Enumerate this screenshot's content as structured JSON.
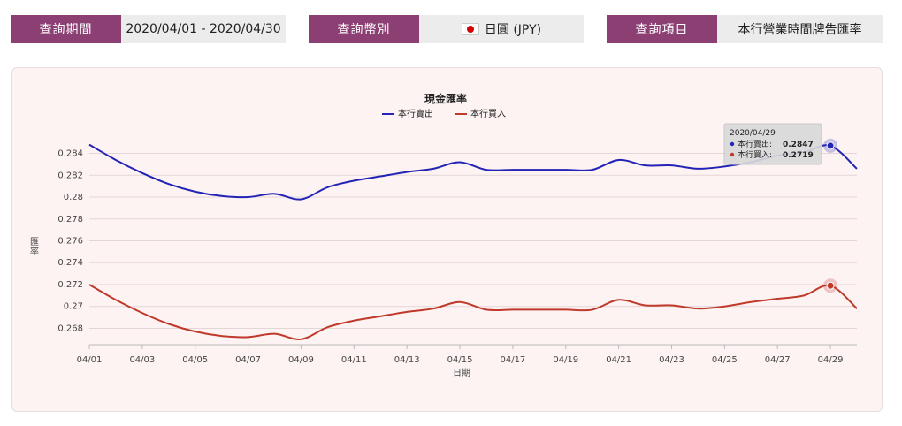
{
  "filters": [
    {
      "label": "查詢期間",
      "value": "2020/04/01 - 2020/04/30"
    },
    {
      "label": "查詢幣別",
      "value": "日圓 (JPY)"
    },
    {
      "label": "查詢項目",
      "value": "本行營業時間牌告匯率"
    }
  ],
  "colors": {
    "accent": "#8b3f73",
    "sell": "#2323b5",
    "buy": "#c0392b"
  },
  "chart_data": {
    "type": "line",
    "title": "現金匯率",
    "xlabel": "日期",
    "ylabel": "匯率",
    "x": [
      "04/01",
      "04/02",
      "04/03",
      "04/04",
      "04/05",
      "04/06",
      "04/07",
      "04/08",
      "04/09",
      "04/10",
      "04/11",
      "04/12",
      "04/13",
      "04/14",
      "04/15",
      "04/16",
      "04/17",
      "04/18",
      "04/19",
      "04/20",
      "04/21",
      "04/22",
      "04/23",
      "04/24",
      "04/25",
      "04/26",
      "04/27",
      "04/28",
      "04/29",
      "04/30"
    ],
    "xticks": [
      "04/01",
      "04/03",
      "04/05",
      "04/07",
      "04/09",
      "04/11",
      "04/13",
      "04/15",
      "04/17",
      "04/19",
      "04/21",
      "04/23",
      "04/25",
      "04/27",
      "04/29"
    ],
    "yticks": [
      "0.284",
      "0.282",
      "0.28",
      "0.278",
      "0.276",
      "0.274",
      "0.272",
      "0.27",
      "0.268"
    ],
    "ylim": [
      0.2665,
      0.2855
    ],
    "legend": "top-center",
    "grid": "horizontal",
    "series": [
      {
        "name": "本行賣出",
        "color": "#2323b5",
        "values": [
          0.2848,
          0.2834,
          0.2822,
          0.2812,
          0.2805,
          0.2801,
          0.28,
          0.2803,
          0.2798,
          0.2809,
          0.2815,
          0.2819,
          0.2823,
          0.2826,
          0.2832,
          0.2825,
          0.2825,
          0.2825,
          0.2825,
          0.2825,
          0.2834,
          0.2829,
          0.2829,
          0.2826,
          0.2828,
          0.2832,
          0.2838,
          0.2841,
          0.2847,
          0.2826
        ]
      },
      {
        "name": "本行買入",
        "color": "#c0392b",
        "values": [
          0.272,
          0.2706,
          0.2694,
          0.2684,
          0.2677,
          0.2673,
          0.2672,
          0.2675,
          0.267,
          0.2681,
          0.2687,
          0.2691,
          0.2695,
          0.2698,
          0.2704,
          0.2697,
          0.2697,
          0.2697,
          0.2697,
          0.2697,
          0.2706,
          0.2701,
          0.2701,
          0.2698,
          0.27,
          0.2704,
          0.2707,
          0.271,
          0.2719,
          0.2698
        ]
      }
    ],
    "tooltip": {
      "date": "2020/04/29",
      "rows": [
        {
          "name": "本行賣出",
          "label": "本行賣出:",
          "value": "0.2847"
        },
        {
          "name": "本行買入",
          "label": "本行買入:",
          "value": "0.2719"
        }
      ]
    }
  }
}
